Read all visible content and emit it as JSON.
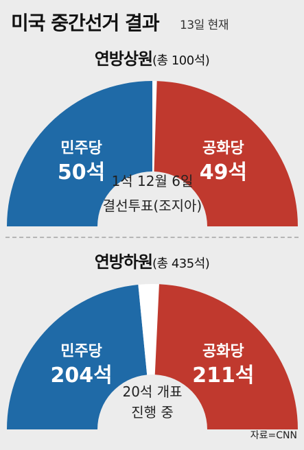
{
  "header": {
    "title": "미국 중간선거 결과",
    "subtitle": "13일 현재"
  },
  "source": "자료=CNN",
  "colors": {
    "democrat": "#1f6aa7",
    "republican": "#c0392e",
    "pending": "#ffffff",
    "background": "#ececec"
  },
  "chart_data": [
    {
      "type": "pie",
      "variant": "semicircle",
      "title": "연방상원",
      "subtitle": "(총 100석)",
      "total": 100,
      "series": [
        {
          "name": "민주당",
          "value": 50,
          "label": "50석",
          "color": "#1f6aa7"
        },
        {
          "name": "공화당",
          "value": 49,
          "label": "49석",
          "color": "#c0392e"
        }
      ],
      "pending_value": 1,
      "annotation": [
        "1석 12월 6일",
        "결선투표(조지아)"
      ]
    },
    {
      "type": "pie",
      "variant": "semicircle",
      "title": "연방하원",
      "subtitle": "(총 435석)",
      "total": 435,
      "series": [
        {
          "name": "민주당",
          "value": 204,
          "label": "204석",
          "color": "#1f6aa7"
        },
        {
          "name": "공화당",
          "value": 211,
          "label": "211석",
          "color": "#c0392e"
        }
      ],
      "pending_value": 20,
      "annotation": [
        "20석 개표",
        "진행 중"
      ]
    }
  ]
}
